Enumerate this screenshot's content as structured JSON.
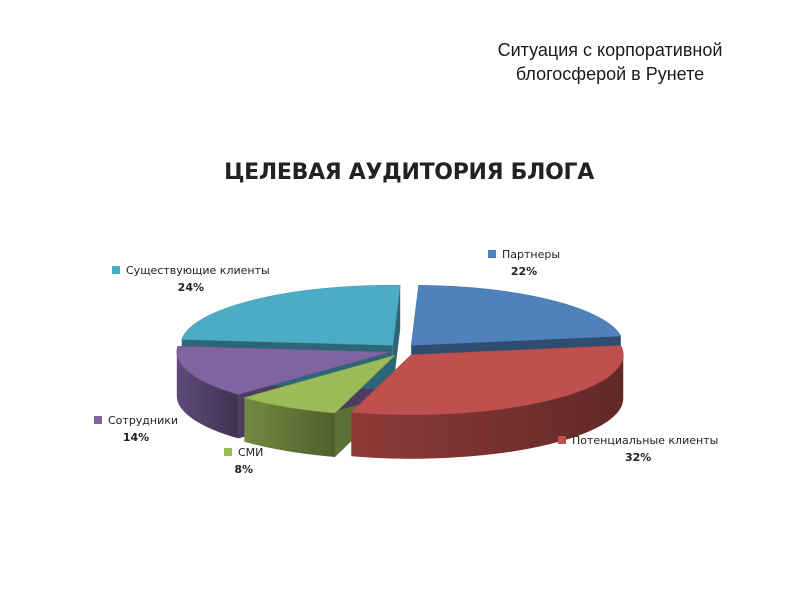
{
  "slide": {
    "title_line1": "Ситуация с корпоративной",
    "title_line2": "блогосферой в Рунете"
  },
  "chart_data": {
    "type": "pie",
    "title": "ЦЕЛЕВАЯ АУДИТОРИЯ БЛОГА",
    "slices": [
      {
        "name": "Партнеры",
        "value": 22,
        "label": "22%",
        "color": "#4f81bd"
      },
      {
        "name": "Потенциальные клиенты",
        "value": 32,
        "label": "32%",
        "color": "#c0504d"
      },
      {
        "name": "СМИ",
        "value": 8,
        "label": "8%",
        "color": "#9bbb59"
      },
      {
        "name": "Сотрудники",
        "value": 14,
        "label": "14%",
        "color": "#8064a2"
      },
      {
        "name": "Существующие клиенты",
        "value": 24,
        "label": "24%",
        "color": "#4bacc6"
      }
    ]
  }
}
